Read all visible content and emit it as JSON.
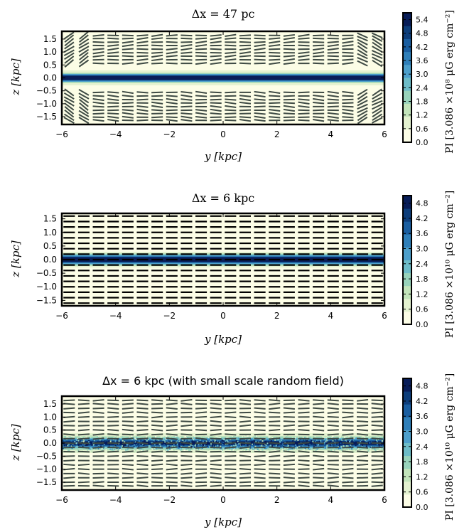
{
  "chart_data": [
    {
      "type": "heatmap",
      "title": "Δx = 47 pc",
      "xlabel": "y [kpc]",
      "ylabel": "z [kpc]",
      "xlim": [
        -6,
        6
      ],
      "ylim": [
        -1.8,
        1.8
      ],
      "x_ticks": [
        -6,
        -4,
        -2,
        0,
        2,
        4,
        6
      ],
      "x_tick_labels": [
        "−6",
        "−4",
        "−2",
        "0",
        "2",
        "4",
        "6"
      ],
      "y_ticks": [
        1.5,
        1.0,
        0.5,
        0.0,
        -0.5,
        -1.0,
        -1.5
      ],
      "y_tick_labels": [
        "1.5",
        "1.0",
        "0.5",
        "0.0",
        "−0.5",
        "−1.0",
        "−1.5"
      ],
      "colorbar": {
        "label": "PI [3.086 ×10⁸ μG erg cm⁻²]",
        "ticks": [
          0.0,
          0.6,
          1.2,
          1.8,
          2.4,
          3.0,
          3.6,
          4.2,
          4.8,
          5.4
        ],
        "tick_labels": [
          "0.0",
          "0.6",
          "1.2",
          "1.8",
          "2.4",
          "3.0",
          "3.6",
          "4.2",
          "4.8",
          "5.4"
        ],
        "vmax": 5.7
      },
      "profile": {
        "peak": 5.6,
        "core_width_kpc": 0.15,
        "halo_value": 0.55,
        "halo_width_kpc": 0.45
      },
      "vectors": {
        "style": "solid",
        "rows_kpc": [
          1.64,
          1.52,
          1.38,
          1.25,
          1.11,
          0.97,
          0.84,
          0.7,
          0.56,
          -0.56,
          -0.7,
          -0.84,
          -0.97,
          -1.11,
          -1.25,
          -1.38,
          -1.52,
          -1.64
        ],
        "color": "#3e4a44"
      },
      "random_field": false
    },
    {
      "type": "heatmap",
      "title": "Δx = 6 kpc",
      "xlabel": "y [kpc]",
      "ylabel": "z [kpc]",
      "xlim": [
        -6,
        6
      ],
      "ylim": [
        -1.7,
        1.7
      ],
      "x_ticks": [
        -6,
        -4,
        -2,
        0,
        2,
        4,
        6
      ],
      "x_tick_labels": [
        "−6",
        "−4",
        "−2",
        "0",
        "2",
        "4",
        "6"
      ],
      "y_ticks": [
        1.5,
        1.0,
        0.5,
        0.0,
        -0.5,
        -1.0,
        -1.5
      ],
      "y_tick_labels": [
        "1.5",
        "1.0",
        "0.5",
        "0.0",
        "−0.5",
        "−1.0",
        "−1.5"
      ],
      "colorbar": {
        "label": "PI [3.086 ×10¹⁰ μG erg cm⁻²]",
        "ticks": [
          0.0,
          0.6,
          1.2,
          1.8,
          2.4,
          3.0,
          3.6,
          4.2,
          4.8
        ],
        "tick_labels": [
          "0.0",
          "0.6",
          "1.2",
          "1.8",
          "2.4",
          "3.0",
          "3.6",
          "4.2",
          "4.8"
        ],
        "vmax": 5.1
      },
      "profile": {
        "peak": 5.0,
        "core_width_kpc": 0.16,
        "halo_value": 0.45,
        "halo_width_kpc": 0.5
      },
      "vectors": {
        "style": "solid",
        "rows_kpc": [
          1.6,
          1.4,
          1.2,
          1.0,
          0.8,
          0.6,
          0.4,
          0.2,
          0.0,
          -0.2,
          -0.4,
          -0.6,
          -0.8,
          -1.0,
          -1.2,
          -1.4,
          -1.6
        ],
        "color": "#000000"
      },
      "random_field": false
    },
    {
      "type": "heatmap",
      "title": "Δx = 6 kpc (with small scale random field)",
      "xlabel": "y [kpc]",
      "ylabel": "z [kpc]",
      "xlim": [
        -6,
        6
      ],
      "ylim": [
        -1.8,
        1.8
      ],
      "x_ticks": [
        -6,
        -4,
        -2,
        0,
        2,
        4,
        6
      ],
      "x_tick_labels": [
        "−6",
        "−4",
        "−2",
        "0",
        "2",
        "4",
        "6"
      ],
      "y_ticks": [
        1.5,
        1.0,
        0.5,
        0.0,
        -0.5,
        -1.0,
        -1.5
      ],
      "y_tick_labels": [
        "1.5",
        "1.0",
        "0.5",
        "0.0",
        "−0.5",
        "−1.0",
        "−1.5"
      ],
      "colorbar": {
        "label": "PI [3.086 ×10¹⁰ μG erg cm⁻²]",
        "ticks": [
          0.0,
          0.6,
          1.2,
          1.8,
          2.4,
          3.0,
          3.6,
          4.2,
          4.8
        ],
        "tick_labels": [
          "0.0",
          "0.6",
          "1.2",
          "1.8",
          "2.4",
          "3.0",
          "3.6",
          "4.2",
          "4.8"
        ],
        "vmax": 5.1
      },
      "profile": {
        "peak": 4.2,
        "core_width_kpc": 0.2,
        "halo_value": 0.55,
        "halo_width_kpc": 0.55
      },
      "vectors": {
        "style": "solid",
        "rows_kpc": [
          1.64,
          1.5,
          1.33,
          1.17,
          1.0,
          0.83,
          0.67,
          0.5,
          0.33,
          0.17,
          0.0,
          -0.17,
          -0.33,
          -0.5,
          -0.67,
          -0.83,
          -1.0,
          -1.17,
          -1.33,
          -1.5,
          -1.64
        ],
        "color": "#3e4a44"
      },
      "random_field": true
    }
  ],
  "colormap": [
    "#fcfde6",
    "#e4f2d0",
    "#c3e5bb",
    "#98d3bb",
    "#6dbcc8",
    "#4d9fcb",
    "#2f7fb9",
    "#1a5ea0",
    "#0d3e7b",
    "#081d58"
  ]
}
